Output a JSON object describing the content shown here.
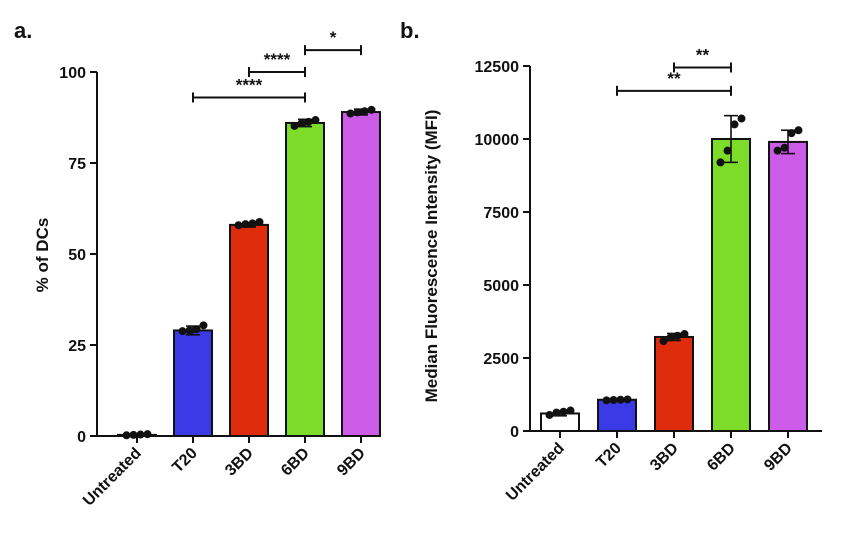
{
  "chart_data": [
    {
      "panel": "a.",
      "type": "bar",
      "ylabel": "% of DCs",
      "xlabel": "",
      "ylim": [
        0,
        100
      ],
      "yticks": [
        "0",
        "25",
        "50",
        "75",
        "100"
      ],
      "categories": [
        "Untreated",
        "T20",
        "3BD",
        "6BD",
        "9BD"
      ],
      "values": [
        0.3,
        29,
        58,
        86,
        89
      ],
      "errors": [
        0.3,
        1.2,
        0.6,
        1.0,
        0.8
      ],
      "colors": [
        "#ffffff",
        "#3a3ae6",
        "#dd2b0c",
        "#7ddc2a",
        "#cc5ce8"
      ],
      "points": [
        [
          0.2,
          0.3,
          0.4,
          0.5
        ],
        [
          28.8,
          29.0,
          29.3,
          30.4
        ],
        [
          57.9,
          58.2,
          58.4,
          58.8
        ],
        [
          85.2,
          85.9,
          86.3,
          86.8
        ],
        [
          88.6,
          88.9,
          89.2,
          89.6
        ]
      ],
      "significance": [
        {
          "from": "T20",
          "to": "6BD",
          "label": "****",
          "y": 93
        },
        {
          "from": "3BD",
          "to": "6BD",
          "label": "****",
          "y": 100
        },
        {
          "from": "6BD",
          "to": "9BD",
          "label": "*",
          "y": 106
        }
      ]
    },
    {
      "panel": "b.",
      "type": "bar",
      "ylabel": "Median Fluorescence Intensity (MFI)",
      "xlabel": "",
      "ylim": [
        0,
        12500
      ],
      "yticks": [
        "0",
        "2500",
        "5000",
        "7500",
        "10000",
        "12500"
      ],
      "categories": [
        "Untreated",
        "T20",
        "3BD",
        "6BD",
        "9BD"
      ],
      "values": [
        600,
        1070,
        3220,
        10000,
        9900
      ],
      "errors": [
        80,
        40,
        120,
        800,
        400
      ],
      "colors": [
        "#ffffff",
        "#3a3ae6",
        "#dd2b0c",
        "#7ddc2a",
        "#cc5ce8"
      ],
      "points": [
        [
          550,
          630,
          660,
          700
        ],
        [
          1050,
          1060,
          1070,
          1080
        ],
        [
          3080,
          3200,
          3260,
          3320
        ],
        [
          9200,
          9600,
          10500,
          10700
        ],
        [
          9600,
          9700,
          10200,
          10300
        ]
      ],
      "significance": [
        {
          "from": "T20",
          "to": "6BD",
          "label": "**",
          "y": 11650
        },
        {
          "from": "3BD",
          "to": "6BD",
          "label": "**",
          "y": 12450
        }
      ]
    }
  ]
}
